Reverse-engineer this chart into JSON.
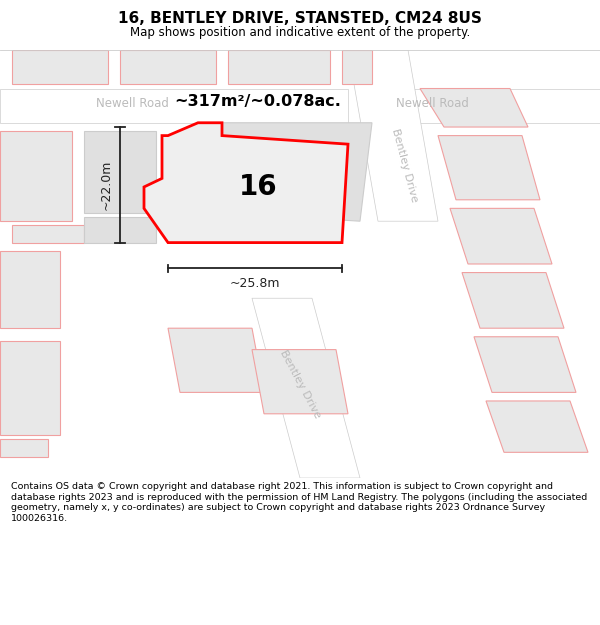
{
  "title": "16, BENTLEY DRIVE, STANSTED, CM24 8US",
  "subtitle": "Map shows position and indicative extent of the property.",
  "footer": "Contains OS data © Crown copyright and database right 2021. This information is subject to Crown copyright and database rights 2023 and is reproduced with the permission of HM Land Registry. The polygons (including the associated geometry, namely x, y co-ordinates) are subject to Crown copyright and database rights 2023 Ordnance Survey 100026316.",
  "area_label": "~317m²/~0.078ac.",
  "number_label": "16",
  "dim_h": "~22.0m",
  "dim_w": "~25.8m",
  "newell_road_left": "Newell Road",
  "newell_road_right": "Newell Road",
  "bentley_drive_upper": "Bentley Drive",
  "bentley_drive_lower": "Bentley Drive",
  "map_bg": "#f0f0f0",
  "road_fill": "#ffffff",
  "road_edge": "#cccccc",
  "plot_fill": "#e8e8e8",
  "plot_edge": "#f0a0a0",
  "nbr_fill": "#e0e0e0",
  "nbr_edge": "#cccccc",
  "highlight_fill": "#efefef",
  "highlight_edge": "#ff0000",
  "dim_color": "#222222",
  "label_color": "#bbbbbb",
  "title_fontsize": 11,
  "subtitle_fontsize": 8.5,
  "footer_fontsize": 6.8
}
